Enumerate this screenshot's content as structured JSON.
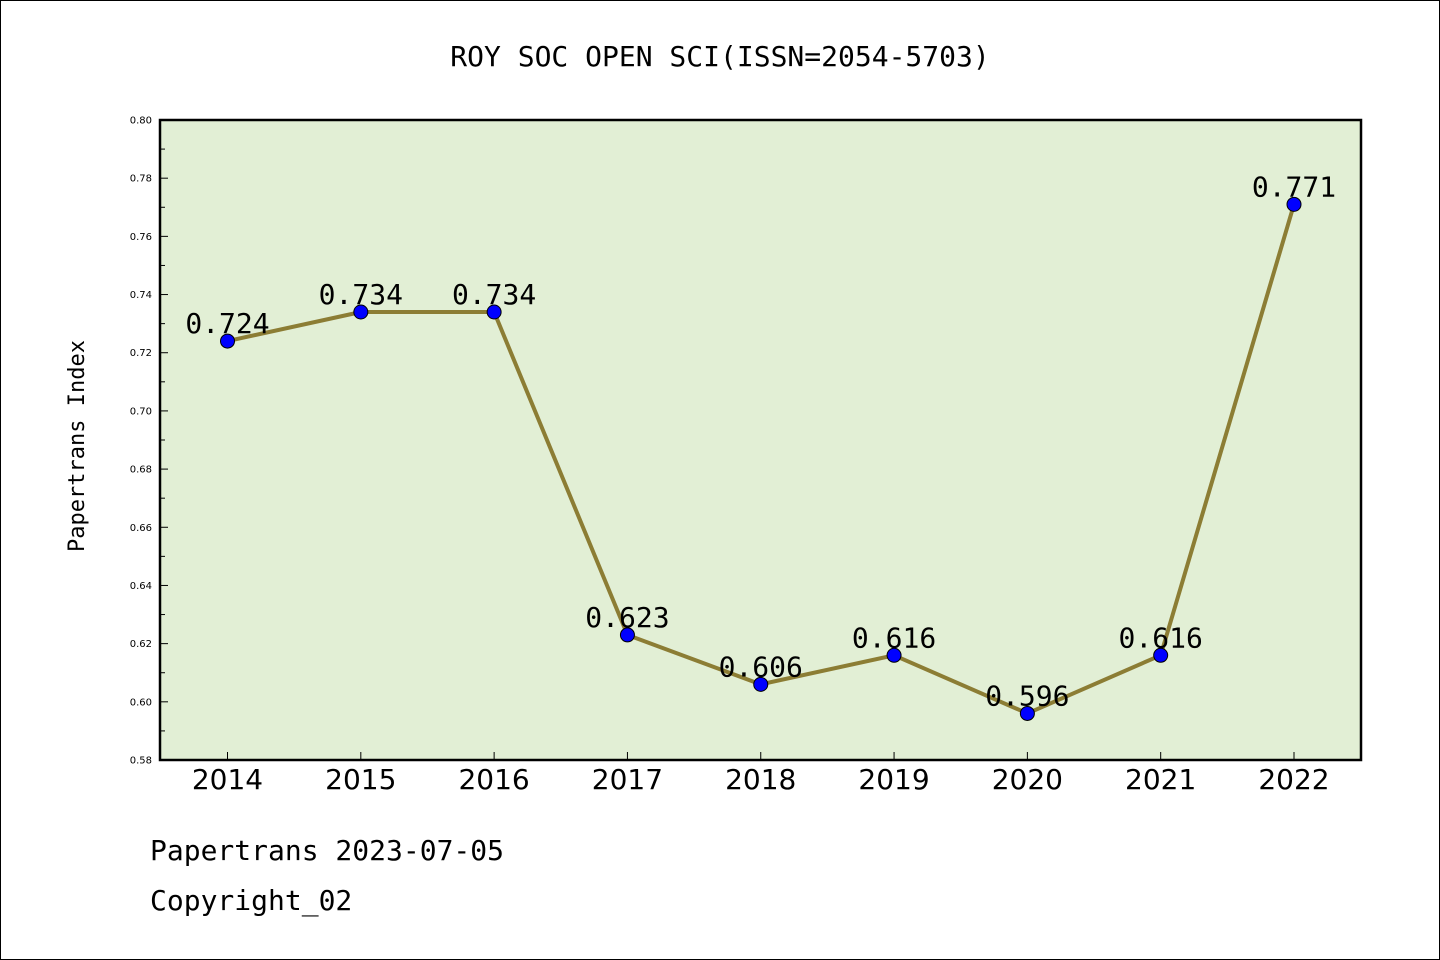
{
  "chart_data": {
    "type": "line",
    "title": "ROY SOC OPEN SCI(ISSN=2054-5703)",
    "ylabel": "Papertrans Index",
    "xlabel": "",
    "categories": [
      "2014",
      "2015",
      "2016",
      "2017",
      "2018",
      "2019",
      "2020",
      "2021",
      "2022"
    ],
    "series": [
      {
        "values": [
          0.724,
          0.734,
          0.734,
          0.623,
          0.606,
          0.616,
          0.596,
          0.616,
          0.771
        ],
        "data_labels": [
          "0.724",
          "0.734",
          "0.734",
          "0.623",
          "0.606",
          "0.616",
          "0.596",
          "0.616",
          "0.771"
        ]
      }
    ],
    "ylim": [
      0.58,
      0.8
    ],
    "yticks": [
      "0.58",
      "0.60",
      "0.62",
      "0.64",
      "0.66",
      "0.68",
      "0.70",
      "0.72",
      "0.74",
      "0.76",
      "0.78",
      "0.80"
    ],
    "grid": false,
    "colors": {
      "plot_background": "#e2efd5",
      "line": "#8c7d34",
      "marker": "#0000ff"
    }
  },
  "footer": {
    "date_line": "Papertrans 2023-07-05",
    "copyright_line": "Copyright_02"
  }
}
